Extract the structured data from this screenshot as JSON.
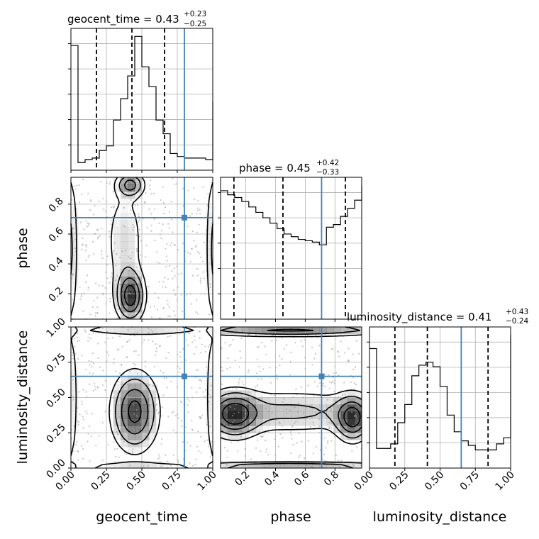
{
  "chart_data": {
    "type": "corner",
    "parameters": [
      "geocent_time",
      "phase",
      "luminosity_distance"
    ],
    "axis_labels": [
      "geocent_time",
      "phase",
      "luminosity_distance"
    ],
    "ranges": {
      "geocent_time": [
        0.0,
        1.0
      ],
      "phase": [
        0.03,
        0.98
      ],
      "luminosity_distance": [
        0.0,
        1.0
      ]
    },
    "tick_labels": {
      "geocent_time": [
        "0.00",
        "0.25",
        "0.50",
        "0.75",
        "1.00"
      ],
      "phase_x": [
        "0.2",
        "0.4",
        "0.6",
        "0.8"
      ],
      "phase_y": [
        "0.2",
        "0.4",
        "0.6",
        "0.8"
      ],
      "luminosity_distance": [
        "0.00",
        "0.25",
        "0.50",
        "0.75",
        "1.00"
      ]
    },
    "titles": [
      {
        "name": "geocent_time",
        "prefix": "geocent_time = 0.43",
        "plus": "+0.23",
        "minus": "−0.25"
      },
      {
        "name": "phase",
        "prefix": "phase = 0.45",
        "plus": "+0.42",
        "minus": "−0.33"
      },
      {
        "name": "luminosity_distance",
        "prefix": "luminosity_distance = 0.41",
        "plus": "+0.43",
        "minus": "−0.24"
      }
    ],
    "truths": {
      "geocent_time": 0.8,
      "phase": 0.71,
      "luminosity_distance": 0.65
    },
    "quantiles": {
      "geocent_time": [
        0.18,
        0.43,
        0.66
      ],
      "phase": [
        0.12,
        0.45,
        0.87
      ],
      "luminosity_distance": [
        0.18,
        0.41,
        0.84
      ]
    },
    "histograms": {
      "geocent_time": {
        "edges": [
          0.0,
          0.05,
          0.1,
          0.15,
          0.2,
          0.25,
          0.3,
          0.35,
          0.4,
          0.45,
          0.5,
          0.55,
          0.6,
          0.65,
          0.7,
          0.75,
          0.8,
          0.85,
          0.9,
          0.95,
          1.0
        ],
        "counts": [
          0.82,
          0.05,
          0.07,
          0.08,
          0.13,
          0.16,
          0.33,
          0.47,
          0.62,
          0.88,
          0.68,
          0.55,
          0.33,
          0.24,
          0.11,
          0.09,
          0.08,
          0.08,
          0.08,
          0.07,
          0.45
        ]
      },
      "phase": {
        "edges": [
          0.03,
          0.0775,
          0.125,
          0.1725,
          0.22,
          0.2675,
          0.315,
          0.3625,
          0.41,
          0.4575,
          0.505,
          0.5525,
          0.6,
          0.6475,
          0.695,
          0.7425,
          0.79,
          0.8375,
          0.885,
          0.9325,
          0.98
        ],
        "counts": [
          0.95,
          0.92,
          0.9,
          0.87,
          0.83,
          0.79,
          0.75,
          0.71,
          0.67,
          0.63,
          0.61,
          0.59,
          0.58,
          0.57,
          0.55,
          0.68,
          0.7,
          0.76,
          0.82,
          0.88,
          0.99
        ]
      },
      "luminosity_distance": {
        "edges": [
          0.0,
          0.05,
          0.1,
          0.15,
          0.2,
          0.25,
          0.3,
          0.35,
          0.4,
          0.45,
          0.5,
          0.55,
          0.6,
          0.65,
          0.7,
          0.75,
          0.8,
          0.85,
          0.9,
          0.95,
          1.0
        ],
        "counts": [
          0.79,
          0.13,
          0.13,
          0.16,
          0.3,
          0.42,
          0.61,
          0.68,
          0.7,
          0.67,
          0.54,
          0.35,
          0.24,
          0.18,
          0.15,
          0.12,
          0.12,
          0.12,
          0.16,
          0.2,
          0.88
        ]
      }
    },
    "contour_panels": [
      {
        "x": "geocent_time",
        "y": "phase"
      },
      {
        "x": "geocent_time",
        "y": "luminosity_distance"
      },
      {
        "x": "phase",
        "y": "luminosity_distance"
      }
    ],
    "grid": true,
    "colors": {
      "truth": "#4682b4",
      "line": "#000000",
      "grid": "#b0b0b0",
      "density": "#808080"
    }
  }
}
